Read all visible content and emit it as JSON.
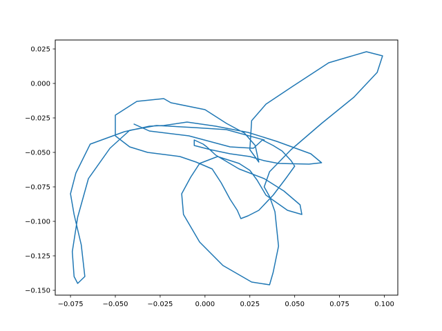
{
  "chart_data": {
    "type": "line",
    "title": "",
    "xlabel": "",
    "ylabel": "",
    "xlim": [
      -0.0835,
      0.1075
    ],
    "ylim": [
      -0.1535,
      0.0315
    ],
    "grid": false,
    "legend": "none",
    "xticks": [
      -0.075,
      -0.05,
      -0.025,
      0.0,
      0.025,
      0.05,
      0.075,
      0.1
    ],
    "xtick_labels": [
      "−0.075",
      "−0.050",
      "−0.025",
      "0.000",
      "0.025",
      "0.050",
      "0.075",
      "0.100"
    ],
    "yticks": [
      0.025,
      0.0,
      -0.025,
      -0.05,
      -0.075,
      -0.1,
      -0.125,
      -0.15
    ],
    "ytick_labels": [
      "0.025",
      "0.000",
      "−0.025",
      "−0.050",
      "−0.075",
      "−0.100",
      "−0.125",
      "−0.150"
    ],
    "series": [
      {
        "color": "#1f77b4",
        "x": [
          -0.0395,
          -0.031,
          -0.009,
          0.014,
          0.027,
          0.032,
          0.038,
          0.043,
          0.048,
          0.05,
          0.045,
          0.038,
          0.03,
          0.024,
          0.02,
          0.018,
          0.014,
          0.009,
          0.004,
          -0.005,
          -0.014,
          -0.032,
          -0.042,
          -0.05,
          -0.05,
          -0.038,
          -0.023,
          -0.019,
          0.0,
          0.012,
          0.022,
          0.028,
          0.03,
          0.025,
          0.026,
          0.034,
          0.049,
          0.069,
          0.09,
          0.099,
          0.096,
          0.083,
          0.065,
          0.048,
          0.036,
          0.033,
          0.036,
          0.039,
          0.041,
          0.038,
          0.036,
          0.026,
          0.01,
          -0.003,
          -0.012,
          -0.013,
          -0.008,
          -0.003,
          0.007,
          0.019,
          0.025,
          0.029,
          0.034,
          0.046,
          0.054,
          0.053,
          0.044,
          0.033,
          0.019,
          0.006,
          0.001,
          -0.001,
          -0.006,
          -0.006,
          0.003,
          0.014,
          0.025,
          0.033,
          0.041,
          0.058,
          0.065,
          0.059,
          0.04,
          0.024,
          0.006,
          -0.01,
          -0.023,
          -0.031,
          -0.045,
          -0.064,
          -0.072,
          -0.075,
          -0.073,
          -0.069,
          -0.067,
          -0.071,
          -0.073,
          -0.074,
          -0.071,
          -0.065,
          -0.053,
          -0.042,
          -0.027,
          -0.006,
          0.012,
          0.033
        ],
        "y": [
          -0.0295,
          -0.0345,
          -0.038,
          -0.046,
          -0.047,
          -0.041,
          -0.045,
          -0.049,
          -0.056,
          -0.06,
          -0.069,
          -0.081,
          -0.092,
          -0.096,
          -0.098,
          -0.092,
          -0.084,
          -0.072,
          -0.062,
          -0.057,
          -0.053,
          -0.05,
          -0.046,
          -0.038,
          -0.023,
          -0.013,
          -0.011,
          -0.014,
          -0.019,
          -0.029,
          -0.036,
          -0.045,
          -0.057,
          -0.048,
          -0.027,
          -0.015,
          -0.002,
          0.015,
          0.023,
          0.02,
          0.008,
          -0.01,
          -0.029,
          -0.048,
          -0.064,
          -0.075,
          -0.082,
          -0.093,
          -0.118,
          -0.137,
          -0.146,
          -0.144,
          -0.132,
          -0.115,
          -0.095,
          -0.08,
          -0.068,
          -0.058,
          -0.053,
          -0.058,
          -0.063,
          -0.07,
          -0.081,
          -0.092,
          -0.095,
          -0.088,
          -0.078,
          -0.069,
          -0.062,
          -0.052,
          -0.046,
          -0.044,
          -0.041,
          -0.045,
          -0.048,
          -0.051,
          -0.053,
          -0.056,
          -0.058,
          -0.0585,
          -0.0575,
          -0.051,
          -0.042,
          -0.0355,
          -0.031,
          -0.028,
          -0.0305,
          -0.031,
          -0.035,
          -0.044,
          -0.065,
          -0.08,
          -0.095,
          -0.117,
          -0.14,
          -0.145,
          -0.14,
          -0.122,
          -0.097,
          -0.069,
          -0.047,
          -0.034,
          -0.0305,
          -0.032,
          -0.0335,
          -0.041
        ]
      }
    ]
  }
}
